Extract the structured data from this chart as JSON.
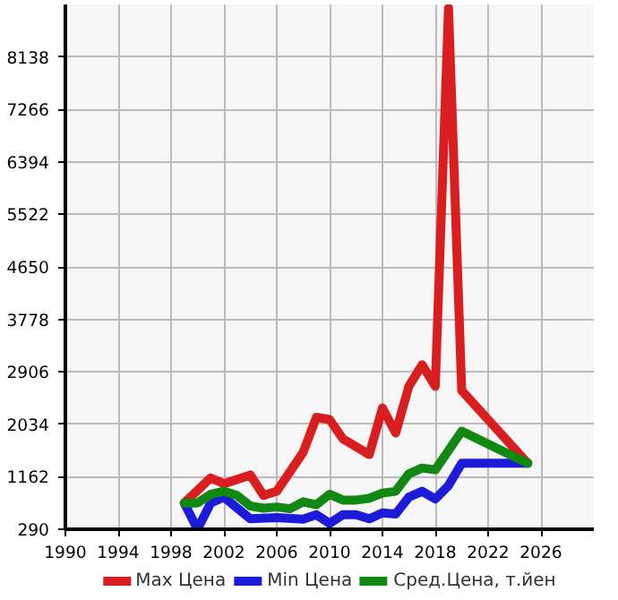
{
  "chart_data": {
    "type": "line",
    "xlim": [
      1990,
      2030
    ],
    "ylim": [
      290,
      9010
    ],
    "xticks": [
      1990,
      1994,
      1998,
      2002,
      2006,
      2010,
      2014,
      2018,
      2022,
      2026
    ],
    "yticks": [
      290,
      1162,
      2034,
      2906,
      3778,
      4650,
      5522,
      6394,
      7266,
      8138
    ],
    "grid": true,
    "legend": "bottom",
    "line_style": "solid",
    "series": [
      {
        "name": "Max Цена",
        "color": "#d81e1e",
        "x": [
          1999,
          2001,
          2002,
          2004,
          2005,
          2006,
          2008,
          2009,
          2010,
          2011,
          2013,
          2014,
          2015,
          2016,
          2017,
          2018,
          2019,
          2020,
          2025
        ],
        "values": [
          726,
          1142,
          1046,
          1191,
          851,
          921,
          1569,
          2150,
          2113,
          1793,
          1531,
          2306,
          1889,
          2665,
          3023,
          2665,
          8950,
          2595,
          1386
        ]
      },
      {
        "name": "Min Цена",
        "color": "#1c1cd8",
        "x": [
          1999,
          2000,
          2001,
          2002,
          2004,
          2006,
          2008,
          2009,
          2010,
          2011,
          2012,
          2013,
          2014,
          2015,
          2016,
          2017,
          2018,
          2019,
          2020,
          2025
        ],
        "values": [
          726,
          290,
          726,
          823,
          464,
          485,
          456,
          531,
          387,
          531,
          531,
          464,
          561,
          543,
          823,
          921,
          793,
          1017,
          1386,
          1386
        ]
      },
      {
        "name": "Сред.Цена, т.йен",
        "color": "#118811",
        "x": [
          1999,
          2000,
          2001,
          2002,
          2003,
          2004,
          2005,
          2006,
          2007,
          2008,
          2009,
          2010,
          2011,
          2012,
          2013,
          2014,
          2015,
          2016,
          2017,
          2018,
          2019,
          2020,
          2025
        ],
        "values": [
          726,
          726,
          871,
          921,
          851,
          677,
          639,
          660,
          630,
          746,
          697,
          871,
          775,
          775,
          804,
          891,
          921,
          1212,
          1307,
          1278,
          1598,
          1918,
          1386
        ]
      }
    ]
  }
}
